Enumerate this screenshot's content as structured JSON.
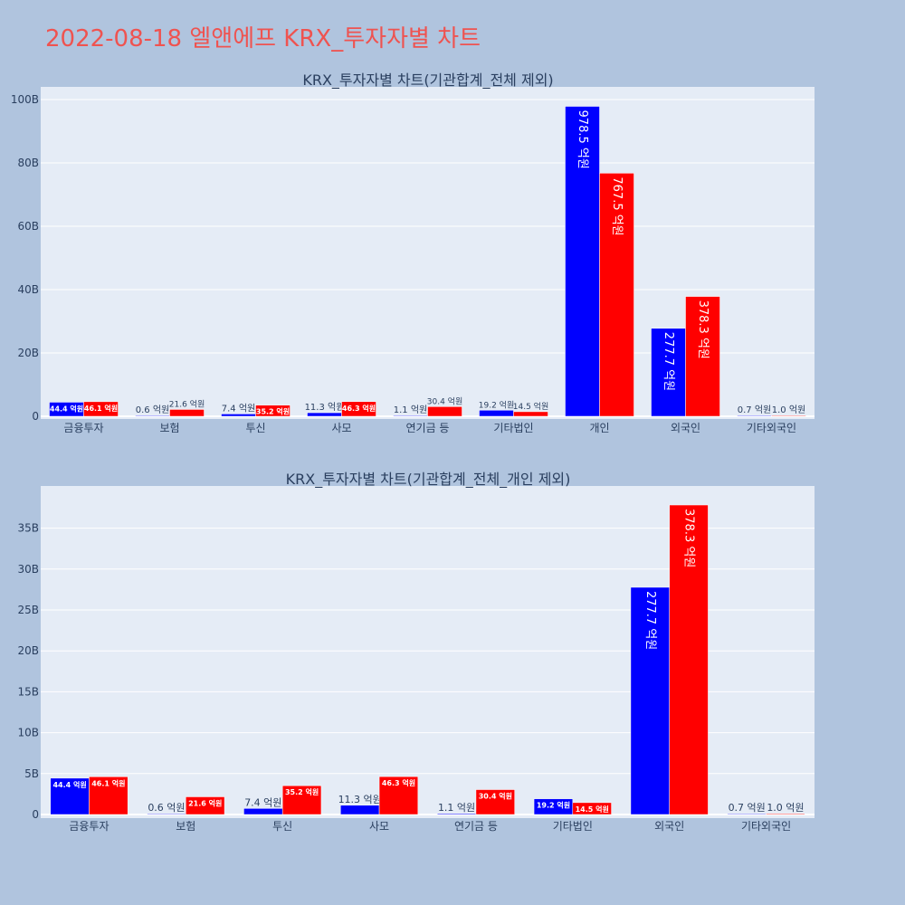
{
  "title": "2022-08-18 엘앤에프 KRX_투자자별 차트",
  "colors": {
    "buy": "#0000ff",
    "sell": "#ff0000",
    "plot_bg": "#e5ecf6",
    "paper_bg": "#b0c4de",
    "title": "#ef5350"
  },
  "chart_data": [
    {
      "type": "bar",
      "title": "KRX_투자자별 차트(기관합계_전체 제외)",
      "categories": [
        "금융투자",
        "보험",
        "투신",
        "사모",
        "연기금 등",
        "기타법인",
        "개인",
        "외국인",
        "기타외국인"
      ],
      "ylim": [
        0,
        105
      ],
      "y_ticks": [
        0,
        20,
        40,
        60,
        80,
        100
      ],
      "y_tick_labels": [
        "0",
        "20B",
        "40B",
        "60B",
        "80B",
        "100B"
      ],
      "grid": true,
      "series": [
        {
          "color": "#0000ff",
          "values": [
            4.44,
            0.06,
            0.74,
            1.13,
            0.11,
            1.92,
            97.85,
            27.77,
            0.07
          ],
          "labels": [
            "44.4 억원",
            "0.6 억원",
            "7.4 억원",
            "11.3 억원",
            "1.1 억원",
            "19.2 억원",
            "978.5 억원",
            "277.7 억원",
            "0.7 억원"
          ]
        },
        {
          "color": "#ff0000",
          "values": [
            4.61,
            2.16,
            3.52,
            4.63,
            3.04,
            1.45,
            76.75,
            37.83,
            0.1
          ],
          "labels": [
            "46.1 억원",
            "21.6 억원",
            "35.2 억원",
            "46.3 억원",
            "30.4 억원",
            "14.5 억원",
            "767.5 억원",
            "378.3 억원",
            "1.0 억원"
          ]
        }
      ]
    },
    {
      "type": "bar",
      "title": "KRX_투자자별 차트(기관합계_전체_개인 제외)",
      "categories": [
        "금융투자",
        "보험",
        "투신",
        "사모",
        "연기금 등",
        "기타법인",
        "외국인",
        "기타외국인"
      ],
      "ylim": [
        0,
        40
      ],
      "y_ticks": [
        0,
        5,
        10,
        15,
        20,
        25,
        30,
        35
      ],
      "y_tick_labels": [
        "0",
        "5B",
        "10B",
        "15B",
        "20B",
        "25B",
        "30B",
        "35B"
      ],
      "grid": true,
      "series": [
        {
          "color": "#0000ff",
          "values": [
            4.44,
            0.06,
            0.74,
            1.13,
            0.11,
            1.92,
            27.77,
            0.07
          ],
          "labels": [
            "44.4 억원",
            "0.6 억원",
            "7.4 억원",
            "11.3 억원",
            "1.1 억원",
            "19.2 억원",
            "277.7 억원",
            "0.7 억원"
          ]
        },
        {
          "color": "#ff0000",
          "values": [
            4.61,
            2.16,
            3.52,
            4.63,
            3.04,
            1.45,
            37.83,
            0.1
          ],
          "labels": [
            "46.1 억원",
            "21.6 억원",
            "35.2 억원",
            "46.3 억원",
            "30.4 억원",
            "14.5 억원",
            "378.3 억원",
            "1.0 억원"
          ]
        }
      ]
    }
  ]
}
